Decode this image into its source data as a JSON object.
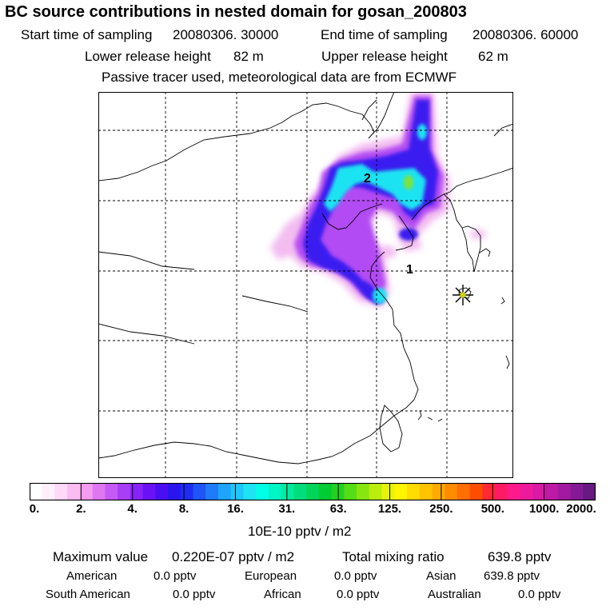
{
  "title": "BC  source contributions in nested domain for gosan_200803",
  "sampling": {
    "start_label": "Start time of sampling",
    "start_value": "20080306. 30000",
    "end_label": "End time of sampling",
    "end_value": "20080306. 60000"
  },
  "release": {
    "lower_label": "Lower release height",
    "lower_value": "82 m",
    "upper_label": "Upper release height",
    "upper_value": "62 m"
  },
  "tracer_note": "Passive tracer used, meteorological data are from ECMWF",
  "map": {
    "markers": [
      {
        "label": "1"
      },
      {
        "label": "2"
      }
    ],
    "receptor_icon": "star-icon"
  },
  "colorbar": {
    "unit": "10E-10 pptv / m2",
    "ticks": [
      "0.",
      "2.",
      "4.",
      "8.",
      "16.",
      "31.",
      "63.",
      "125.",
      "250.",
      "500.",
      "1000.",
      "2000."
    ],
    "colors": [
      "#ffffff",
      "#fff0fb",
      "#ffd9f7",
      "#fbbcf2",
      "#f49cef",
      "#df77f3",
      "#c65af5",
      "#a83ff6",
      "#8823f8",
      "#6a12f5",
      "#4a0ef2",
      "#2b15ee",
      "#1f2df3",
      "#1f55f6",
      "#1f7cf8",
      "#1ea4fa",
      "#1ec7fb",
      "#1ee3f2",
      "#00ffe6",
      "#00f5c5",
      "#00eaa0",
      "#00de7c",
      "#00d55a",
      "#00cc33",
      "#22d21e",
      "#55dd16",
      "#88e610",
      "#bbee0c",
      "#e6f40a",
      "#fff500",
      "#ffdd00",
      "#ffc400",
      "#ffaa00",
      "#ff8c00",
      "#ff6e00",
      "#ff4d00",
      "#ff2a33",
      "#ff1a66",
      "#ff1a8c",
      "#ee1a9c",
      "#d81aa4",
      "#bf1aa6",
      "#a31aa2",
      "#851a96",
      "#661a82"
    ]
  },
  "stats": {
    "max_label": "Maximum value",
    "max_value": "0.220E-07 pptv / m2",
    "total_label": "Total mixing ratio",
    "total_value": "639.8 pptv"
  },
  "regions": [
    {
      "name": "American",
      "value": "0.0 pptv"
    },
    {
      "name": "European",
      "value": "0.0 pptv"
    },
    {
      "name": "Asian",
      "value": "639.8 pptv"
    },
    {
      "name": "South American",
      "value": "0.0 pptv"
    },
    {
      "name": "African",
      "value": "0.0 pptv"
    },
    {
      "name": "Australian",
      "value": "0.0 pptv"
    }
  ]
}
